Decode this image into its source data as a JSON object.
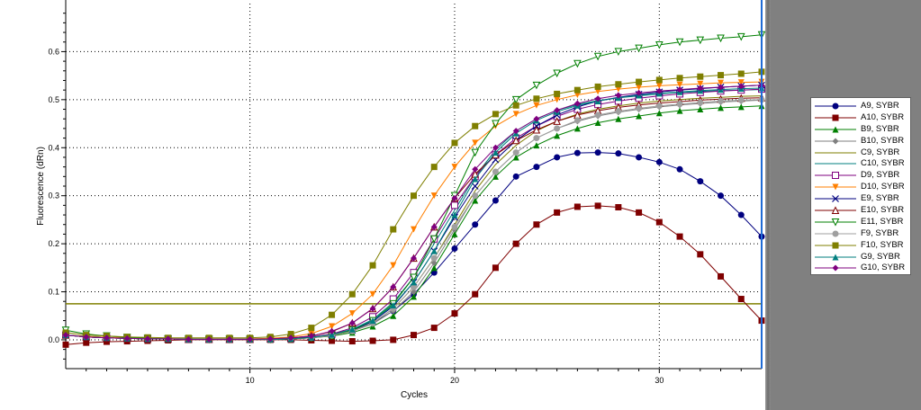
{
  "chart_data": {
    "type": "line",
    "xlabel": "Cycles",
    "ylabel": "Fluorescence (dRn)",
    "xlim": [
      1,
      35
    ],
    "ylim": [
      -0.06,
      0.7
    ],
    "x_ticks": [
      10,
      20,
      30
    ],
    "y_ticks": [
      0.0,
      0.1,
      0.2,
      0.3,
      0.4,
      0.5,
      0.6
    ],
    "x_tick_labels": [
      "10",
      "20",
      "30"
    ],
    "y_tick_labels": [
      "0.0",
      "0.1",
      "0.2",
      "0.3",
      "0.4",
      "0.5",
      "0.6"
    ],
    "grid": true,
    "threshold": {
      "value": 0.075,
      "color": "#808000"
    },
    "cursor_x": 35,
    "legend_position": "right",
    "x": [
      1,
      2,
      3,
      4,
      5,
      6,
      7,
      8,
      9,
      10,
      11,
      12,
      13,
      14,
      15,
      16,
      17,
      18,
      19,
      20,
      21,
      22,
      23,
      24,
      25,
      26,
      27,
      28,
      29,
      30,
      31,
      32,
      33,
      34,
      35
    ],
    "series": [
      {
        "name": "A9, SYBR",
        "color": "#00007f",
        "marker": "circle-filled",
        "values": [
          0.01,
          0.006,
          0.004,
          0.003,
          0.002,
          0.002,
          0.001,
          0.001,
          0.001,
          0.001,
          0.002,
          0.003,
          0.005,
          0.01,
          0.02,
          0.035,
          0.06,
          0.095,
          0.14,
          0.19,
          0.24,
          0.29,
          0.34,
          0.36,
          0.38,
          0.389,
          0.39,
          0.388,
          0.38,
          0.37,
          0.355,
          0.33,
          0.3,
          0.26,
          0.215
        ]
      },
      {
        "name": "A10, SYBR",
        "color": "#7f0000",
        "marker": "square-filled",
        "values": [
          -0.01,
          -0.006,
          -0.004,
          -0.003,
          -0.002,
          -0.001,
          0.0,
          0.0,
          0.0,
          0.0,
          0.0,
          0.0,
          -0.001,
          -0.002,
          -0.003,
          -0.002,
          0.0,
          0.01,
          0.025,
          0.055,
          0.095,
          0.15,
          0.2,
          0.24,
          0.265,
          0.277,
          0.279,
          0.276,
          0.265,
          0.245,
          0.215,
          0.178,
          0.132,
          0.085,
          0.04
        ]
      },
      {
        "name": "B9, SYBR",
        "color": "#007f00",
        "marker": "triangle-up-filled",
        "values": [
          0.01,
          0.007,
          0.005,
          0.003,
          0.002,
          0.002,
          0.001,
          0.001,
          0.001,
          0.001,
          0.001,
          0.002,
          0.004,
          0.008,
          0.015,
          0.028,
          0.05,
          0.09,
          0.15,
          0.22,
          0.29,
          0.34,
          0.38,
          0.405,
          0.425,
          0.44,
          0.452,
          0.46,
          0.466,
          0.472,
          0.477,
          0.48,
          0.483,
          0.485,
          0.487
        ]
      },
      {
        "name": "B10, SYBR",
        "color": "#7f7f7f",
        "marker": "diamond-filled",
        "values": [
          0.01,
          0.006,
          0.004,
          0.003,
          0.002,
          0.002,
          0.001,
          0.001,
          0.001,
          0.001,
          0.001,
          0.002,
          0.004,
          0.009,
          0.018,
          0.033,
          0.06,
          0.1,
          0.16,
          0.23,
          0.3,
          0.35,
          0.39,
          0.42,
          0.44,
          0.455,
          0.466,
          0.474,
          0.48,
          0.485,
          0.489,
          0.492,
          0.495,
          0.497,
          0.499
        ]
      },
      {
        "name": "C9, SYBR",
        "color": "#7f7f00",
        "marker": "none",
        "values": [
          0.01,
          0.007,
          0.005,
          0.003,
          0.002,
          0.002,
          0.001,
          0.001,
          0.001,
          0.001,
          0.001,
          0.002,
          0.004,
          0.009,
          0.018,
          0.035,
          0.065,
          0.11,
          0.17,
          0.24,
          0.31,
          0.365,
          0.405,
          0.435,
          0.455,
          0.47,
          0.48,
          0.487,
          0.493,
          0.497,
          0.5,
          0.503,
          0.505,
          0.507,
          0.508
        ]
      },
      {
        "name": "C10, SYBR",
        "color": "#007f7f",
        "marker": "none",
        "values": [
          0.01,
          0.006,
          0.004,
          0.003,
          0.002,
          0.002,
          0.001,
          0.001,
          0.001,
          0.001,
          0.001,
          0.002,
          0.005,
          0.011,
          0.022,
          0.042,
          0.078,
          0.13,
          0.2,
          0.27,
          0.34,
          0.395,
          0.435,
          0.46,
          0.478,
          0.49,
          0.498,
          0.504,
          0.508,
          0.512,
          0.515,
          0.517,
          0.519,
          0.52,
          0.521
        ]
      },
      {
        "name": "D9, SYBR",
        "color": "#7f007f",
        "marker": "square-open",
        "values": [
          0.01,
          0.006,
          0.004,
          0.003,
          0.002,
          0.002,
          0.001,
          0.001,
          0.001,
          0.001,
          0.002,
          0.003,
          0.006,
          0.012,
          0.025,
          0.048,
          0.085,
          0.14,
          0.21,
          0.28,
          0.34,
          0.385,
          0.42,
          0.445,
          0.465,
          0.48,
          0.49,
          0.497,
          0.503,
          0.508,
          0.512,
          0.515,
          0.518,
          0.52,
          0.522
        ]
      },
      {
        "name": "D10, SYBR",
        "color": "#ff7f00",
        "marker": "triangle-down-filled",
        "values": [
          0.01,
          0.007,
          0.005,
          0.004,
          0.003,
          0.002,
          0.002,
          0.002,
          0.002,
          0.002,
          0.003,
          0.006,
          0.013,
          0.028,
          0.055,
          0.095,
          0.155,
          0.23,
          0.3,
          0.36,
          0.41,
          0.445,
          0.47,
          0.488,
          0.5,
          0.51,
          0.517,
          0.522,
          0.526,
          0.529,
          0.531,
          0.533,
          0.535,
          0.536,
          0.537
        ]
      },
      {
        "name": "E9, SYBR",
        "color": "#00007f",
        "marker": "x",
        "values": [
          0.01,
          0.006,
          0.004,
          0.003,
          0.002,
          0.002,
          0.001,
          0.001,
          0.001,
          0.001,
          0.001,
          0.002,
          0.005,
          0.01,
          0.02,
          0.038,
          0.07,
          0.12,
          0.185,
          0.255,
          0.32,
          0.375,
          0.415,
          0.445,
          0.468,
          0.485,
          0.497,
          0.505,
          0.511,
          0.516,
          0.52,
          0.523,
          0.526,
          0.528,
          0.53
        ]
      },
      {
        "name": "E10, SYBR",
        "color": "#7f0000",
        "marker": "triangle-up-open",
        "values": [
          0.01,
          0.006,
          0.004,
          0.003,
          0.002,
          0.002,
          0.001,
          0.001,
          0.001,
          0.001,
          0.002,
          0.004,
          0.008,
          0.017,
          0.035,
          0.065,
          0.11,
          0.17,
          0.235,
          0.295,
          0.345,
          0.385,
          0.415,
          0.437,
          0.455,
          0.468,
          0.477,
          0.484,
          0.489,
          0.493,
          0.496,
          0.499,
          0.501,
          0.503,
          0.504
        ]
      },
      {
        "name": "E11, SYBR",
        "color": "#007f00",
        "marker": "triangle-down-open",
        "values": [
          0.02,
          0.012,
          0.008,
          0.005,
          0.003,
          0.002,
          0.002,
          0.001,
          0.001,
          0.001,
          0.001,
          0.002,
          0.004,
          0.009,
          0.02,
          0.04,
          0.075,
          0.13,
          0.21,
          0.3,
          0.39,
          0.45,
          0.5,
          0.53,
          0.555,
          0.575,
          0.59,
          0.6,
          0.607,
          0.614,
          0.62,
          0.624,
          0.628,
          0.631,
          0.635
        ]
      },
      {
        "name": "F9, SYBR",
        "color": "#9f9f9f",
        "marker": "circle-filled",
        "values": [
          0.01,
          0.006,
          0.004,
          0.003,
          0.002,
          0.002,
          0.001,
          0.001,
          0.001,
          0.001,
          0.001,
          0.002,
          0.004,
          0.009,
          0.018,
          0.035,
          0.065,
          0.11,
          0.17,
          0.235,
          0.3,
          0.35,
          0.39,
          0.42,
          0.44,
          0.457,
          0.468,
          0.476,
          0.482,
          0.487,
          0.491,
          0.494,
          0.497,
          0.499,
          0.5
        ]
      },
      {
        "name": "F10, SYBR",
        "color": "#7f7f00",
        "marker": "square-filled",
        "values": [
          0.015,
          0.01,
          0.008,
          0.006,
          0.005,
          0.004,
          0.004,
          0.004,
          0.004,
          0.004,
          0.006,
          0.012,
          0.025,
          0.052,
          0.095,
          0.155,
          0.23,
          0.3,
          0.36,
          0.41,
          0.445,
          0.47,
          0.488,
          0.502,
          0.512,
          0.52,
          0.527,
          0.532,
          0.537,
          0.541,
          0.545,
          0.548,
          0.551,
          0.554,
          0.558
        ]
      },
      {
        "name": "G9, SYBR",
        "color": "#007f7f",
        "marker": "triangle-up-filled",
        "values": [
          0.01,
          0.006,
          0.004,
          0.003,
          0.002,
          0.002,
          0.001,
          0.001,
          0.001,
          0.001,
          0.001,
          0.002,
          0.005,
          0.011,
          0.022,
          0.04,
          0.072,
          0.12,
          0.185,
          0.26,
          0.335,
          0.39,
          0.43,
          0.457,
          0.475,
          0.488,
          0.497,
          0.504,
          0.509,
          0.513,
          0.516,
          0.519,
          0.521,
          0.523,
          0.524
        ]
      },
      {
        "name": "G10, SYBR",
        "color": "#7f007f",
        "marker": "diamond-filled",
        "values": [
          0.01,
          0.006,
          0.004,
          0.003,
          0.002,
          0.002,
          0.001,
          0.001,
          0.001,
          0.001,
          0.002,
          0.004,
          0.008,
          0.018,
          0.035,
          0.065,
          0.11,
          0.17,
          0.235,
          0.295,
          0.355,
          0.4,
          0.435,
          0.46,
          0.478,
          0.492,
          0.502,
          0.509,
          0.514,
          0.518,
          0.521,
          0.524,
          0.526,
          0.528,
          0.53
        ]
      }
    ]
  }
}
